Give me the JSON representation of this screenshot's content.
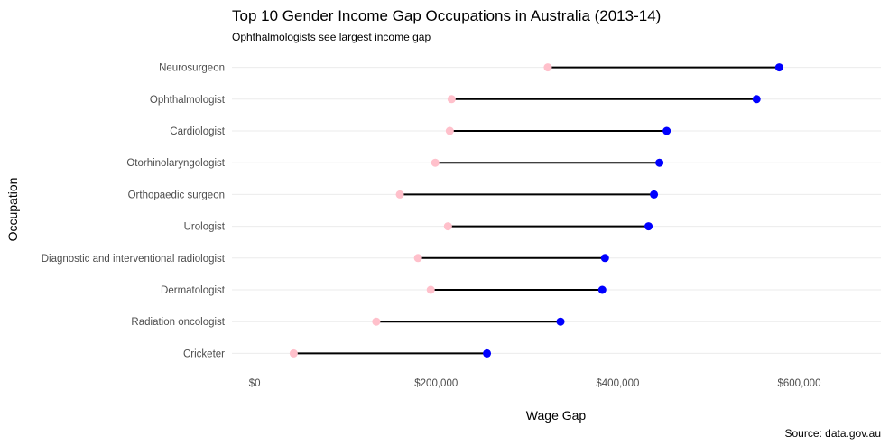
{
  "chart_data": {
    "type": "dumbbell",
    "title": "Top 10 Gender Income Gap Occupations in Australia (2013-14)",
    "subtitle": "Ophthalmologists see largest income gap",
    "xlabel": "Wage Gap",
    "ylabel": "Occupation",
    "caption": "Source: data.gov.au",
    "xlim": [
      -25000,
      690000
    ],
    "x_ticks": [
      0,
      200000,
      400000,
      600000
    ],
    "x_tick_labels": [
      "$0",
      "$200,000",
      "$400,000",
      "$600,000"
    ],
    "grid": "horizontal major only",
    "colors": {
      "female": "#ffc0cb",
      "male": "#0000ff",
      "segment": "#000000"
    },
    "categories": [
      "Neurosurgeon",
      "Ophthalmologist",
      "Cardiologist",
      "Otorhinolaryngologist",
      "Orthopaedic surgeon",
      "Urologist",
      "Diagnostic and interventional radiologist",
      "Dermatologist",
      "Radiation oncologist",
      "Cricketer"
    ],
    "series": [
      {
        "values": [
          323000,
          217000,
          215000,
          199000,
          160000,
          213000,
          180000,
          194000,
          134000,
          43000
        ]
      },
      {
        "values": [
          578000,
          553000,
          454000,
          446000,
          440000,
          434000,
          386000,
          383000,
          337000,
          256000
        ]
      }
    ]
  }
}
